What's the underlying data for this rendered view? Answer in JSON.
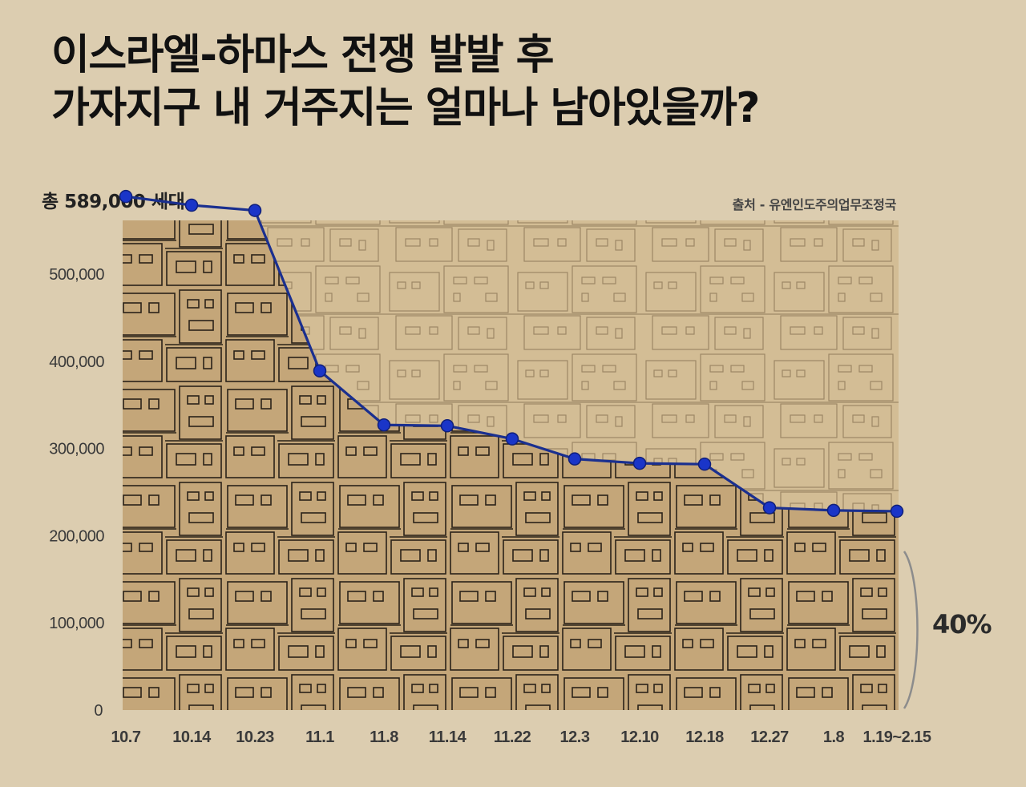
{
  "title": {
    "line1": "이스라엘-하마스 전쟁 발발 후",
    "line2": "가자지구 내 거주지는 얼마나 남아있을까?"
  },
  "total_label": "총 589,000 세대",
  "source": "출처 - 유엔인도주의업무조정국",
  "percent_label": "40%",
  "colors": {
    "background": "#dccdb0",
    "fill_buildings": "#c4a679",
    "faded_buildings": "#d2bb92",
    "line": "#1a2f8f",
    "marker": "#1a35c8"
  },
  "chart_data": {
    "type": "line",
    "categories": [
      "10.7",
      "10.14",
      "10.23",
      "11.1",
      "11.8",
      "11.14",
      "11.22",
      "12.3",
      "12.10",
      "12.18",
      "12.27",
      "1.8",
      "1.19~2.15"
    ],
    "values": [
      589000,
      579000,
      573000,
      389000,
      327000,
      326000,
      311000,
      288000,
      283000,
      282000,
      232000,
      229000,
      228000
    ],
    "ylim": [
      0,
      560000
    ],
    "yticks": [
      "0",
      "100,000",
      "200,000",
      "300,000",
      "400,000",
      "500,000"
    ],
    "ytick_values": [
      0,
      100000,
      200000,
      300000,
      400000,
      500000
    ],
    "annotation": "40%",
    "grid": false
  }
}
